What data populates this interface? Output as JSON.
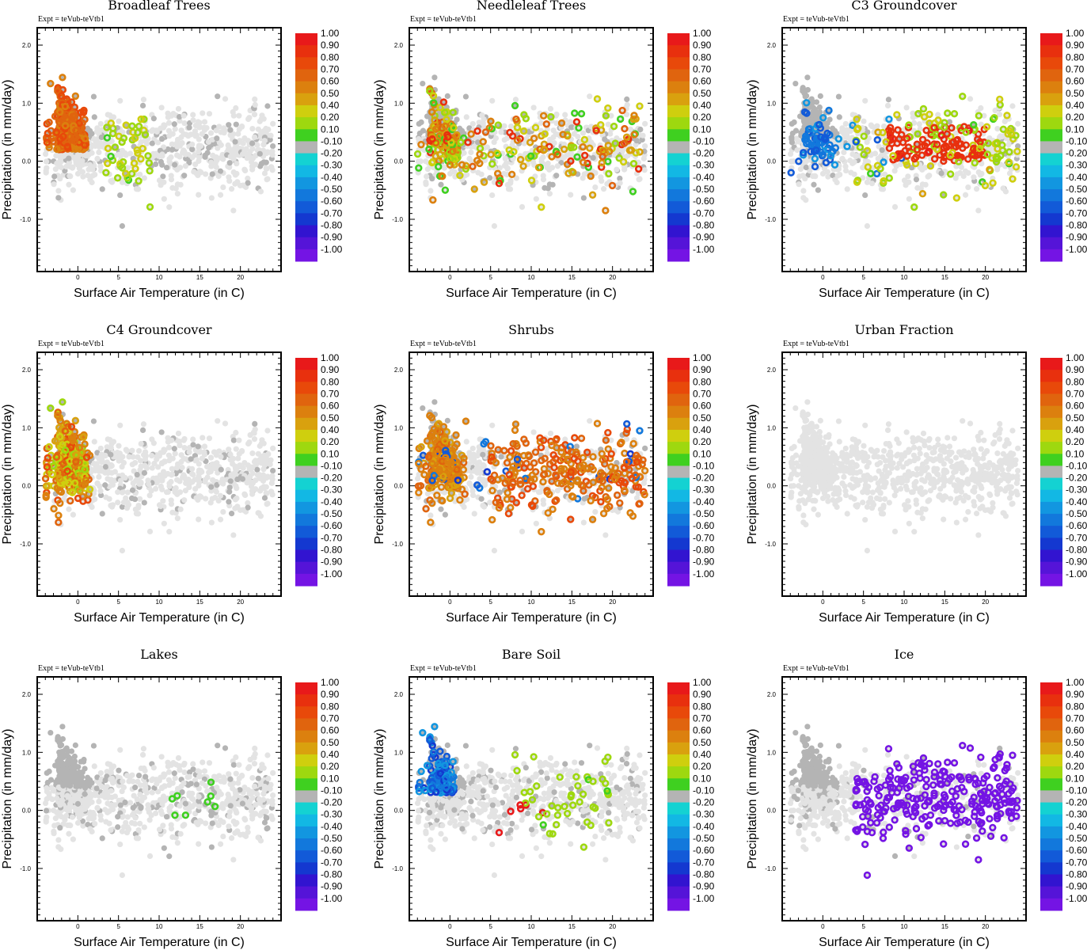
{
  "chart_data": {
    "type": "scatter",
    "layout": "3x3 grid",
    "common": {
      "experiment_note": "Expt = teVub-teVtb1",
      "xlabel": "Surface Air Temperature (in C)",
      "ylabel": "Precipitation (in mm/day)",
      "xlim": [
        -5,
        25
      ],
      "ylim": [
        -1.9,
        2.3
      ],
      "xticks": [
        "0",
        "5",
        "10",
        "15",
        "20"
      ],
      "xtick_values": [
        0,
        5,
        10,
        15,
        20
      ],
      "yticks": [
        "2.0",
        "1.0",
        "0.0",
        "-1.0"
      ],
      "ytick_values": [
        2.0,
        1.0,
        0.0,
        -1.0
      ],
      "colorbar": {
        "labels": [
          "1.00",
          "0.90",
          "0.80",
          "0.70",
          "0.60",
          "0.50",
          "0.40",
          "0.20",
          "0.10",
          "-0.10",
          "-0.20",
          "-0.30",
          "-0.40",
          "-0.50",
          "-0.60",
          "-0.70",
          "-0.80",
          "-0.90",
          "-1.00"
        ],
        "colors": [
          "#e8191a",
          "#e8300e",
          "#e8490a",
          "#e0640e",
          "#dc800e",
          "#d9a10e",
          "#cfcf0e",
          "#9ed80f",
          "#3fd020",
          "#b4b4b4",
          "#14d2d2",
          "#12b8e4",
          "#1296e0",
          "#1278dc",
          "#125ad8",
          "#1438d0",
          "#3214d0",
          "#5514d8",
          "#7414e4"
        ]
      },
      "background_points_color": "#e3e3e3",
      "neutral_points_color": "#b4b4b4"
    },
    "panels": [
      {
        "title": "Broadleaf Trees",
        "highlight": "mixed"
      },
      {
        "title": "Needleleaf Trees",
        "highlight": "mixed"
      },
      {
        "title": "C3 Groundcover",
        "highlight": "mixed"
      },
      {
        "title": "C4 Groundcover",
        "highlight": "mixed"
      },
      {
        "title": "Shrubs",
        "highlight": "mixed"
      },
      {
        "title": "Urban Fraction",
        "highlight": "none"
      },
      {
        "title": "Lakes",
        "highlight": "mixed"
      },
      {
        "title": "Bare Soil",
        "highlight": "mixed"
      },
      {
        "title": "Ice",
        "highlight": "negative"
      }
    ]
  }
}
